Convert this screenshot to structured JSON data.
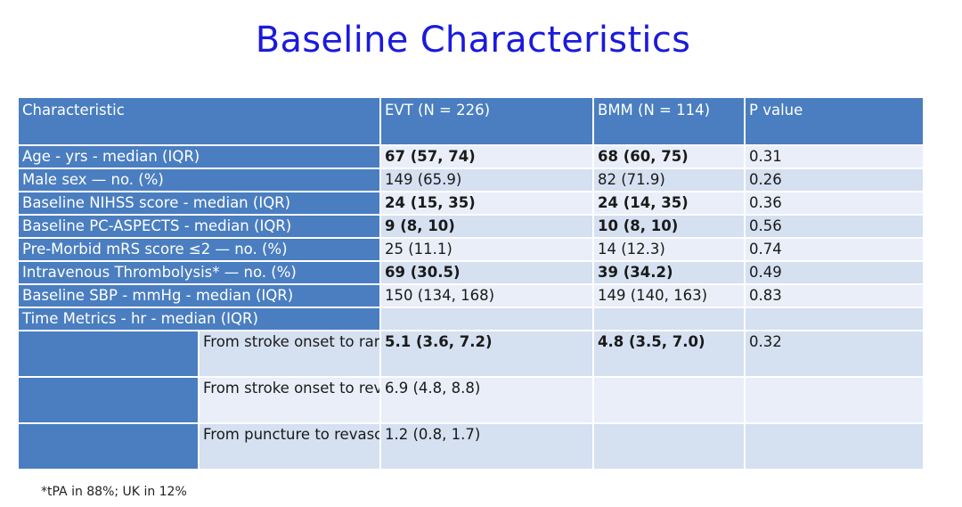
{
  "title": "Baseline Characteristics",
  "header": {
    "characteristic": "Characteristic",
    "evt": "EVT (N = 226)",
    "bmm": "BMM (N = 114)",
    "p": "P value"
  },
  "rows": [
    {
      "label": "Age - yrs - median (IQR)",
      "evt": "67 (57, 74)",
      "bmm": "68 (60, 75)",
      "p": "0.31"
    },
    {
      "label": "Male sex — no. (%)",
      "evt": "149 (65.9)",
      "bmm": "82 (71.9)",
      "p": "0.26"
    },
    {
      "label": "Baseline NIHSS score - median (IQR)",
      "evt": "24 (15, 35)",
      "bmm": "24 (14, 35)",
      "p": "0.36"
    },
    {
      "label": "Baseline PC-ASPECTS - median (IQR)",
      "evt": "9 (8, 10)",
      "bmm": "10 (8, 10)",
      "p": "0.56"
    },
    {
      "label": "Pre-Morbid mRS score ≤2 — no. (%)",
      "evt": "25 (11.1)",
      "bmm": "14 (12.3)",
      "p": "0.74"
    },
    {
      "label": "Intravenous Thrombolysis* — no. (%)",
      "evt": "69 (30.5)",
      "bmm": "39 (34.2)",
      "p": "0.49"
    },
    {
      "label": "Baseline SBP - mmHg - median (IQR)",
      "evt": "150 (134, 168)",
      "bmm": "149 (140, 163)",
      "p": "0.83"
    }
  ],
  "time_metrics": {
    "label": "Time Metrics - hr - median (IQR)",
    "sub": [
      {
        "label": "From stroke onset to randomization",
        "evt": "5.1 (3.6, 7.2)",
        "bmm": "4.8 (3.5, 7.0)",
        "p": "0.32"
      },
      {
        "label": "From stroke onset to revascularization",
        "evt": "6.9 (4.8, 8.8)",
        "bmm": "",
        "p": ""
      },
      {
        "label": "From puncture to revascularization",
        "evt": "1.2 (0.8, 1.7)",
        "bmm": "",
        "p": ""
      }
    ]
  },
  "footnote": "*tPA in 88%; UK in 12%"
}
